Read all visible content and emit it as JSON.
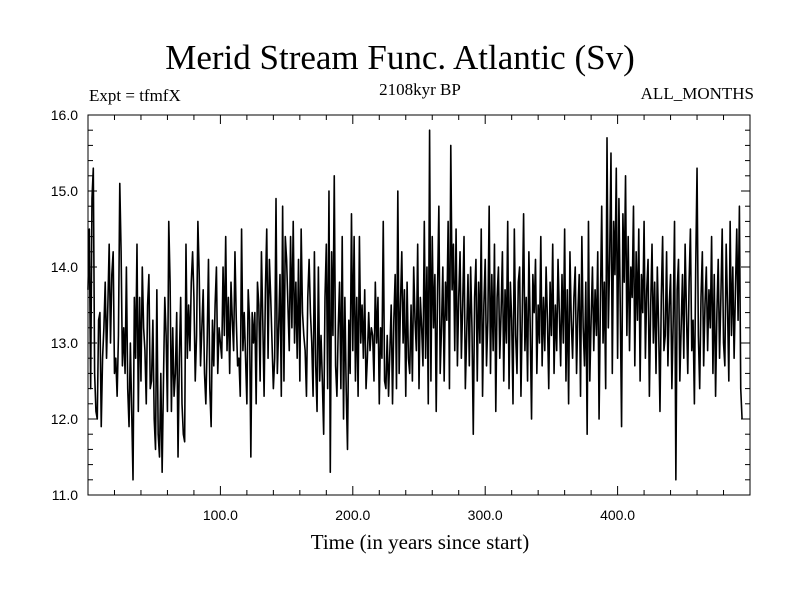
{
  "chart_data": {
    "type": "line",
    "title": "Merid Stream Func. Atlantic (Sv)",
    "left_label": "Expt = tfmfX",
    "subtitle": "2108kyr BP",
    "right_label": "ALL_MONTHS",
    "xlabel": "Time (in years since start)",
    "ylabel": "",
    "xlim": [
      0,
      500
    ],
    "ylim": [
      11.0,
      16.0
    ],
    "x_ticks": [
      100,
      200,
      300,
      400
    ],
    "x_tick_labels": [
      "100.0",
      "200.0",
      "300.0",
      "400.0"
    ],
    "y_ticks": [
      11,
      12,
      13,
      14,
      15,
      16
    ],
    "y_tick_labels": [
      "11.0",
      "12.0",
      "13.0",
      "14.0",
      "15.0",
      "16.0"
    ],
    "series": [
      {
        "name": "Merid Stream Func. Atlantic",
        "x_start": 0,
        "x_step": 1,
        "values": [
          13.7,
          14.5,
          12.4,
          14.9,
          15.3,
          12.6,
          12.1,
          12.0,
          13.3,
          13.4,
          11.9,
          12.8,
          13.2,
          13.8,
          12.8,
          13.5,
          14.3,
          13.0,
          13.9,
          14.2,
          12.6,
          12.8,
          12.3,
          13.1,
          15.1,
          14.2,
          12.7,
          13.2,
          12.6,
          14.0,
          12.4,
          11.9,
          13.0,
          12.1,
          11.2,
          13.6,
          12.8,
          14.3,
          12.1,
          13.6,
          12.5,
          14.0,
          13.2,
          12.9,
          12.2,
          13.5,
          13.9,
          12.4,
          12.5,
          13.3,
          12.0,
          11.6,
          13.7,
          11.8,
          11.5,
          12.6,
          11.3,
          12.5,
          13.6,
          13.1,
          12.1,
          14.6,
          13.8,
          12.1,
          13.2,
          12.3,
          12.6,
          13.4,
          11.5,
          12.8,
          13.6,
          12.2,
          11.8,
          11.7,
          14.3,
          12.8,
          13.5,
          12.9,
          13.8,
          14.2,
          13.6,
          12.5,
          13.1,
          14.6,
          13.9,
          12.7,
          13.2,
          13.7,
          12.6,
          12.2,
          13.0,
          14.1,
          12.4,
          11.9,
          13.3,
          12.7,
          13.5,
          14.0,
          12.6,
          13.2,
          13.0,
          12.8,
          14.0,
          13.1,
          14.4,
          12.9,
          13.6,
          12.6,
          13.8,
          13.3,
          12.9,
          14.2,
          13.3,
          12.7,
          12.8,
          12.3,
          14.5,
          12.9,
          13.4,
          12.8,
          12.2,
          13.7,
          13.3,
          11.5,
          13.4,
          13.0,
          13.4,
          12.2,
          13.8,
          13.5,
          12.5,
          14.2,
          13.3,
          12.3,
          13.7,
          14.5,
          12.8,
          14.1,
          13.6,
          13.0,
          12.4,
          12.8,
          14.9,
          12.6,
          13.2,
          13.9,
          12.3,
          14.8,
          12.5,
          14.4,
          14.1,
          13.5,
          12.9,
          14.4,
          13.2,
          14.6,
          13.0,
          13.8,
          12.8,
          14.1,
          12.5,
          14.5,
          13.4,
          13.1,
          12.9,
          12.3,
          13.6,
          14.1,
          13.4,
          13.0,
          12.3,
          14.2,
          12.7,
          12.1,
          14.0,
          12.5,
          13.1,
          12.5,
          11.8,
          13.6,
          14.3,
          12.4,
          15.0,
          11.3,
          14.2,
          13.1,
          15.2,
          12.7,
          12.3,
          13.2,
          13.8,
          12.4,
          14.4,
          12.0,
          13.6,
          12.4,
          11.6,
          13.3,
          12.6,
          14.7,
          12.9,
          14.4,
          12.5,
          13.6,
          12.3,
          14.4,
          13.0,
          13.5,
          12.8,
          13.7,
          12.4,
          12.8,
          13.4,
          12.9,
          13.2,
          13.1,
          12.5,
          13.8,
          13.0,
          13.6,
          12.2,
          13.2,
          12.8,
          14.6,
          12.5,
          12.4,
          13.1,
          12.3,
          12.9,
          13.5,
          12.2,
          13.3,
          13.9,
          12.4,
          15.0,
          12.6,
          13.5,
          14.2,
          13.0,
          13.7,
          12.3,
          13.8,
          12.8,
          12.6,
          13.5,
          12.5,
          14.0,
          13.3,
          12.9,
          14.3,
          12.4,
          13.6,
          13.2,
          12.7,
          14.6,
          12.8,
          14.0,
          12.2,
          15.8,
          12.5,
          14.4,
          13.2,
          13.9,
          12.1,
          13.7,
          14.8,
          12.6,
          13.2,
          14.0,
          12.5,
          13.8,
          13.3,
          14.6,
          12.4,
          15.6,
          13.7,
          14.3,
          12.9,
          14.5,
          12.7,
          13.6,
          14.2,
          12.8,
          13.5,
          14.4,
          12.4,
          13.1,
          13.9,
          12.7,
          14.0,
          13.2,
          11.8,
          13.6,
          14.1,
          12.5,
          13.8,
          13.0,
          14.5,
          12.3,
          13.5,
          14.1,
          12.7,
          13.3,
          14.8,
          12.6,
          13.9,
          12.9,
          14.3,
          12.1,
          13.6,
          14.0,
          12.8,
          13.4,
          14.2,
          12.5,
          13.7,
          13.0,
          14.6,
          12.4,
          13.8,
          13.3,
          12.2,
          14.5,
          13.1,
          12.6,
          13.8,
          14.0,
          12.3,
          13.4,
          14.7,
          12.9,
          13.6,
          12.5,
          14.2,
          13.2,
          12.0,
          13.9,
          13.4,
          14.1,
          12.6,
          13.5,
          13.0,
          14.4,
          12.7,
          13.6,
          12.9,
          14.0,
          13.3,
          12.4,
          13.8,
          13.1,
          14.3,
          12.6,
          13.5,
          12.9,
          14.1,
          13.4,
          12.7,
          13.9,
          13.0,
          14.5,
          12.5,
          13.7,
          12.2,
          14.2,
          13.3,
          12.8,
          13.6,
          14.0,
          12.6,
          13.4,
          13.9,
          12.3,
          14.4,
          13.2,
          12.7,
          13.8,
          11.8,
          14.6,
          12.5,
          13.3,
          14.0,
          12.9,
          13.7,
          13.1,
          14.2,
          12.0,
          13.5,
          14.8,
          13.0,
          13.8,
          12.4,
          15.7,
          13.2,
          14.1,
          15.5,
          12.6,
          14.6,
          13.9,
          15.3,
          12.8,
          14.9,
          13.5,
          11.9,
          14.7,
          13.8,
          15.2,
          13.1,
          14.4,
          12.9,
          14.0,
          13.6,
          14.8,
          12.7,
          14.2,
          13.3,
          14.5,
          12.5,
          13.9,
          13.4,
          14.6,
          12.8,
          13.7,
          14.1,
          12.3,
          13.5,
          14.3,
          13.0,
          13.8,
          12.6,
          14.0,
          13.2,
          12.1,
          13.6,
          14.4,
          12.9,
          13.1,
          14.2,
          12.7,
          13.5,
          13.9,
          12.4,
          13.3,
          14.6,
          11.2,
          13.7,
          14.1,
          12.5,
          13.2,
          13.9,
          12.8,
          14.3,
          13.4,
          12.6,
          13.8,
          14.5,
          12.9,
          13.3,
          12.2,
          14.0,
          15.3,
          13.1,
          12.4,
          13.6,
          14.2,
          12.7,
          13.5,
          14.0,
          12.9,
          13.7,
          13.2,
          14.4,
          12.6,
          13.9,
          12.3,
          13.4,
          14.1,
          12.8,
          13.6,
          14.5,
          13.0,
          12.7,
          14.3,
          13.5,
          12.5,
          14.6,
          13.1,
          14.0,
          12.8,
          13.7,
          14.5,
          13.3,
          14.8,
          12.4,
          12.0
        ]
      }
    ]
  }
}
